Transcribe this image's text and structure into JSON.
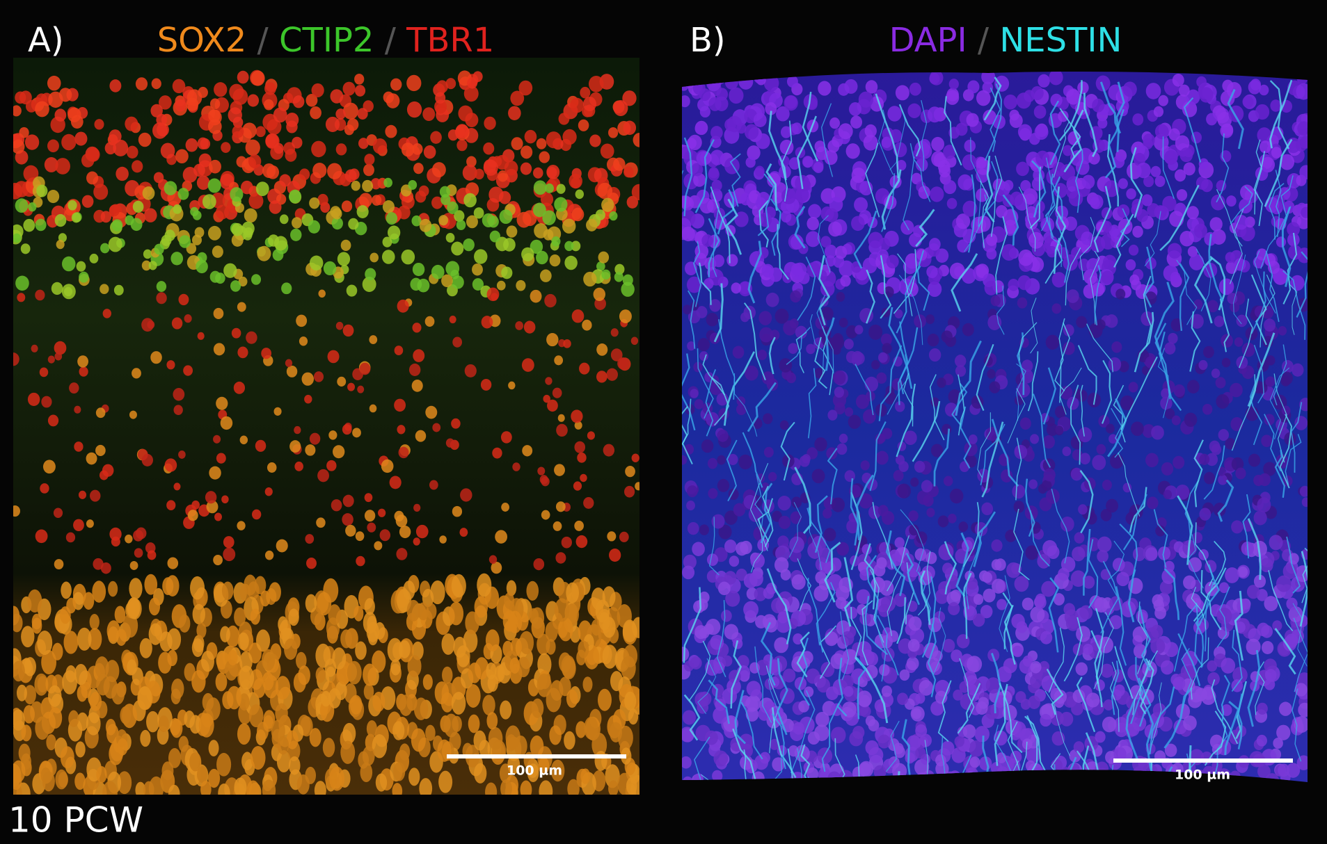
{
  "panel_a": {
    "label": "A)",
    "title": [
      {
        "text": "SOX2",
        "color": "#f08a1c"
      },
      {
        "text": "/",
        "color": "#555555"
      },
      {
        "text": "CTIP2",
        "color": "#3cc62a"
      },
      {
        "text": "/",
        "color": "#555555"
      },
      {
        "text": "TBR1",
        "color": "#e0221e"
      }
    ],
    "scale_bar": "100 µm"
  },
  "panel_b": {
    "label": "B)",
    "title": [
      {
        "text": "DAPI",
        "color": "#8a2be2"
      },
      {
        "text": "/",
        "color": "#555555"
      },
      {
        "text": "NESTIN",
        "color": "#2ee0e6"
      }
    ],
    "scale_bar": "100 µm"
  },
  "footer": "10 PCW"
}
